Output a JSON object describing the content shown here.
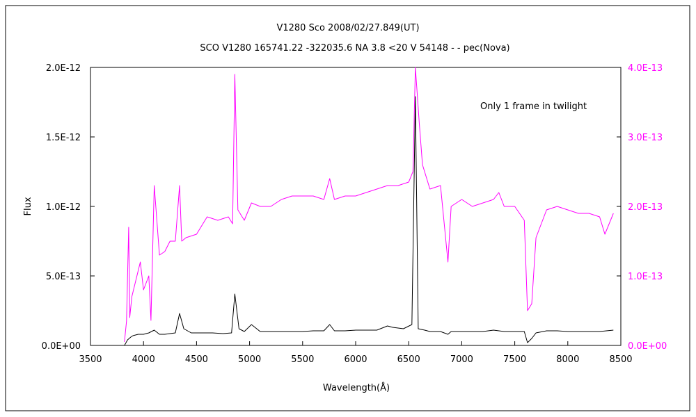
{
  "chart_data": {
    "type": "line",
    "title": "V1280 Sco    2008/02/27.849(UT)",
    "subtitle": "SCO V1280 165741.22 -322035.6 NA 3.8 <20 V 54148 - - pec(Nova)",
    "xlabel": "Wavelength(Å)",
    "ylabel": "Flux",
    "annotation": "Only 1 frame in twilight",
    "xlim": [
      3500,
      8500
    ],
    "ylim_left": [
      0,
      2e-12
    ],
    "ylim_right": [
      0,
      4e-13
    ],
    "grid": false,
    "legend": "none",
    "x_ticks": [
      "3500",
      "4000",
      "4500",
      "5000",
      "5500",
      "6000",
      "6500",
      "7000",
      "7500",
      "8000",
      "8500"
    ],
    "y_ticks_left": [
      "0.0E+00",
      "5.0E-13",
      "1.0E-12",
      "1.5E-12",
      "2.0E-12"
    ],
    "y_ticks_right": [
      "0.0E+00",
      "1.0E-13",
      "2.0E-13",
      "3.0E-13",
      "4.0E-13"
    ],
    "series": [
      {
        "axis": "left",
        "color": "#000000",
        "points": [
          [
            3820,
            0.0
          ],
          [
            3850,
            4e-14
          ],
          [
            3880,
            6e-14
          ],
          [
            3900,
            7e-14
          ],
          [
            3950,
            8e-14
          ],
          [
            4000,
            8e-14
          ],
          [
            4050,
            9e-14
          ],
          [
            4101,
            1.1e-13
          ],
          [
            4150,
            8e-14
          ],
          [
            4200,
            8e-14
          ],
          [
            4250,
            8.5e-14
          ],
          [
            4300,
            9e-14
          ],
          [
            4340,
            2.3e-13
          ],
          [
            4380,
            1.2e-13
          ],
          [
            4450,
            9e-14
          ],
          [
            4550,
            9e-14
          ],
          [
            4650,
            9e-14
          ],
          [
            4750,
            8.5e-14
          ],
          [
            4830,
            9e-14
          ],
          [
            4861,
            3.7e-13
          ],
          [
            4900,
            1.2e-13
          ],
          [
            4950,
            1e-13
          ],
          [
            5018,
            1.5e-13
          ],
          [
            5100,
            1e-13
          ],
          [
            5200,
            1e-13
          ],
          [
            5300,
            1e-13
          ],
          [
            5400,
            1e-13
          ],
          [
            5500,
            1e-13
          ],
          [
            5600,
            1.05e-13
          ],
          [
            5700,
            1.05e-13
          ],
          [
            5755,
            1.5e-13
          ],
          [
            5800,
            1.05e-13
          ],
          [
            5900,
            1.05e-13
          ],
          [
            6000,
            1.1e-13
          ],
          [
            6100,
            1.1e-13
          ],
          [
            6200,
            1.1e-13
          ],
          [
            6300,
            1.4e-13
          ],
          [
            6350,
            1.3e-13
          ],
          [
            6450,
            1.2e-13
          ],
          [
            6530,
            1.5e-13
          ],
          [
            6563,
            1.79e-12
          ],
          [
            6590,
            1.2e-13
          ],
          [
            6650,
            1.1e-13
          ],
          [
            6700,
            1e-13
          ],
          [
            6800,
            1e-13
          ],
          [
            6870,
            8e-14
          ],
          [
            6900,
            1e-13
          ],
          [
            7000,
            1e-13
          ],
          [
            7100,
            1e-13
          ],
          [
            7200,
            1e-13
          ],
          [
            7300,
            1.1e-13
          ],
          [
            7400,
            1e-13
          ],
          [
            7500,
            1e-13
          ],
          [
            7590,
            1e-13
          ],
          [
            7620,
            2e-14
          ],
          [
            7660,
            5e-14
          ],
          [
            7700,
            9e-14
          ],
          [
            7800,
            1.05e-13
          ],
          [
            7900,
            1.05e-13
          ],
          [
            8000,
            1e-13
          ],
          [
            8100,
            1e-13
          ],
          [
            8200,
            1e-13
          ],
          [
            8300,
            1e-13
          ],
          [
            8430,
            1.1e-13
          ]
        ]
      },
      {
        "axis": "right",
        "color": "#ff00ff",
        "points": [
          [
            3820,
            5e-15
          ],
          [
            3840,
            3.5e-14
          ],
          [
            3860,
            1.7e-13
          ],
          [
            3870,
            4e-14
          ],
          [
            3890,
            7e-14
          ],
          [
            3970,
            1.2e-13
          ],
          [
            4000,
            8e-14
          ],
          [
            4050,
            1e-13
          ],
          [
            4070,
            3.6e-14
          ],
          [
            4101,
            2.3e-13
          ],
          [
            4150,
            1.3e-13
          ],
          [
            4200,
            1.35e-13
          ],
          [
            4250,
            1.5e-13
          ],
          [
            4300,
            1.5e-13
          ],
          [
            4340,
            2.3e-13
          ],
          [
            4360,
            1.5e-13
          ],
          [
            4400,
            1.55e-13
          ],
          [
            4500,
            1.6e-13
          ],
          [
            4600,
            1.85e-13
          ],
          [
            4700,
            1.8e-13
          ],
          [
            4800,
            1.85e-13
          ],
          [
            4840,
            1.75e-13
          ],
          [
            4861,
            3.9e-13
          ],
          [
            4890,
            1.95e-13
          ],
          [
            4950,
            1.8e-13
          ],
          [
            5018,
            2.05e-13
          ],
          [
            5100,
            2e-13
          ],
          [
            5200,
            2e-13
          ],
          [
            5300,
            2.1e-13
          ],
          [
            5400,
            2.15e-13
          ],
          [
            5500,
            2.15e-13
          ],
          [
            5600,
            2.15e-13
          ],
          [
            5700,
            2.1e-13
          ],
          [
            5755,
            2.4e-13
          ],
          [
            5800,
            2.1e-13
          ],
          [
            5900,
            2.15e-13
          ],
          [
            6000,
            2.15e-13
          ],
          [
            6100,
            2.2e-13
          ],
          [
            6200,
            2.25e-13
          ],
          [
            6300,
            2.3e-13
          ],
          [
            6330,
            2.3e-13
          ],
          [
            6400,
            2.3e-13
          ],
          [
            6500,
            2.35e-13
          ],
          [
            6540,
            2.5e-13
          ],
          [
            6563,
            4e-13
          ],
          [
            6600,
            3.2e-13
          ],
          [
            6630,
            2.6e-13
          ],
          [
            6700,
            2.25e-13
          ],
          [
            6800,
            2.3e-13
          ],
          [
            6870,
            1.2e-13
          ],
          [
            6900,
            2e-13
          ],
          [
            7000,
            2.1e-13
          ],
          [
            7100,
            2e-13
          ],
          [
            7200,
            2.05e-13
          ],
          [
            7300,
            2.1e-13
          ],
          [
            7350,
            2.2e-13
          ],
          [
            7400,
            2e-13
          ],
          [
            7500,
            2e-13
          ],
          [
            7590,
            1.8e-13
          ],
          [
            7620,
            5e-14
          ],
          [
            7660,
            6e-14
          ],
          [
            7700,
            1.55e-13
          ],
          [
            7800,
            1.95e-13
          ],
          [
            7900,
            2e-13
          ],
          [
            8000,
            1.95e-13
          ],
          [
            8100,
            1.9e-13
          ],
          [
            8200,
            1.9e-13
          ],
          [
            8300,
            1.85e-13
          ],
          [
            8350,
            1.6e-13
          ],
          [
            8430,
            1.9e-13
          ]
        ]
      }
    ]
  }
}
